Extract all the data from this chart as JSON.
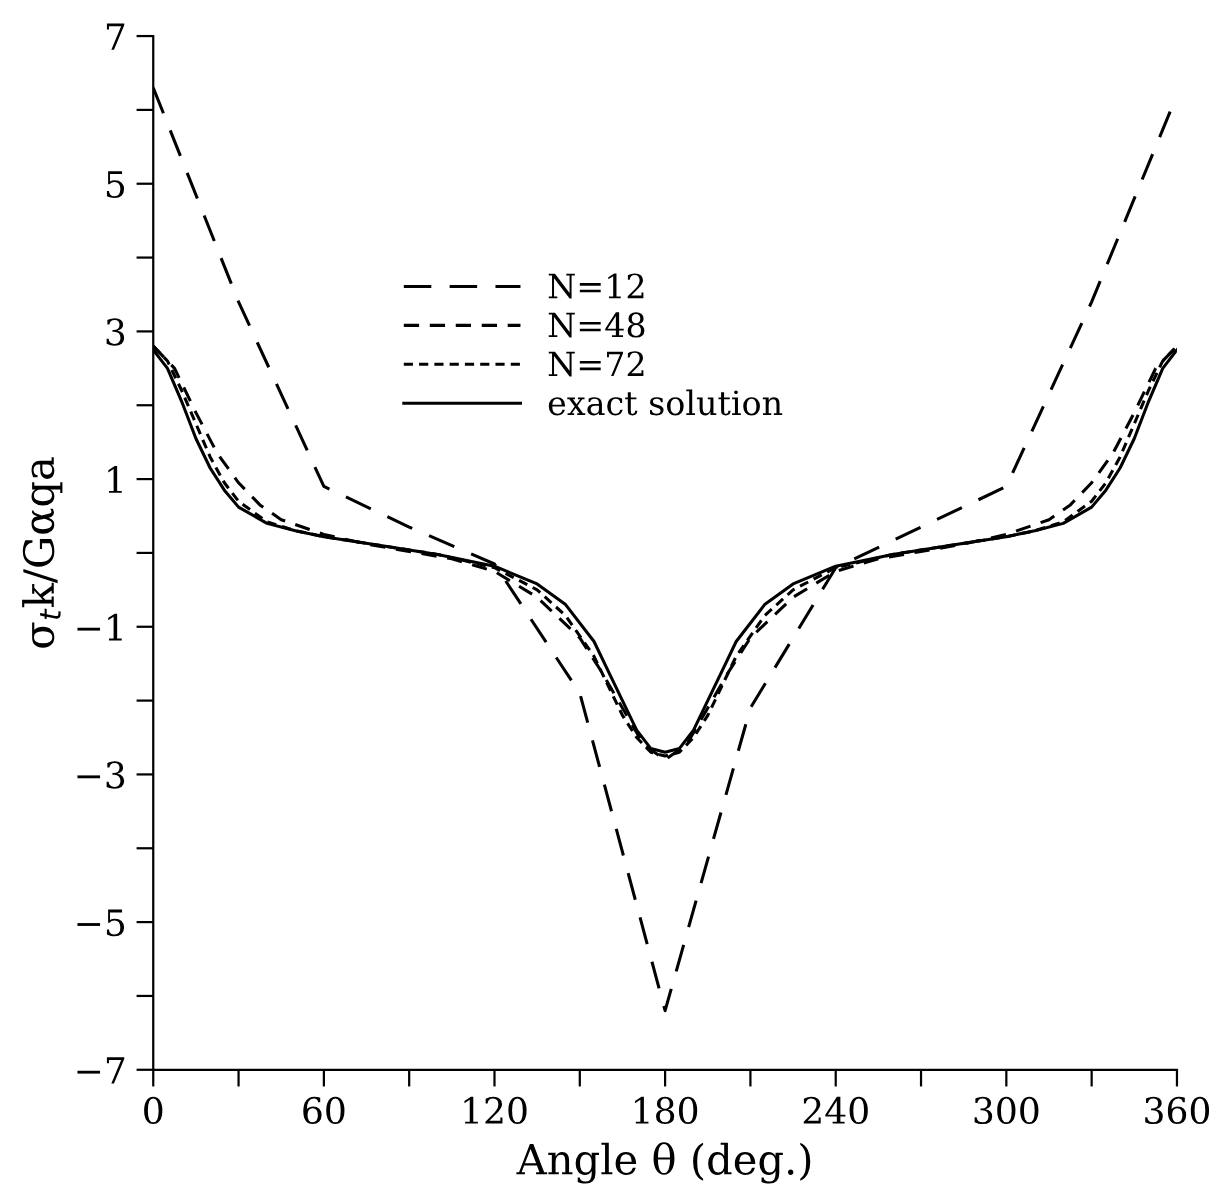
{
  "chart_data": {
    "type": "line",
    "xlabel": "Angle θ (deg.)",
    "ylabel": "σ$_{t}$k/Gαqa",
    "xlim": [
      0,
      360
    ],
    "ylim": [
      -7,
      7
    ],
    "xticks": [
      0,
      {
        "value": 30,
        "label": null
      },
      60,
      {
        "value": 90,
        "label": null
      },
      120,
      {
        "value": 150,
        "label": null
      },
      180,
      {
        "value": 210,
        "label": null
      },
      240,
      {
        "value": 270,
        "label": null
      },
      300,
      {
        "value": 330,
        "label": null
      },
      360
    ],
    "yticks": [
      -7,
      {
        "value": -6,
        "label": null
      },
      -5,
      {
        "value": -4,
        "label": null
      },
      -3,
      {
        "value": -2,
        "label": null
      },
      -1,
      {
        "value": 0,
        "label": null
      },
      1,
      {
        "value": 2,
        "label": null
      },
      3,
      {
        "value": 4,
        "label": null
      },
      5,
      {
        "value": 6,
        "label": null
      },
      7
    ],
    "legend": "top",
    "grid": false,
    "series": [
      {
        "name": "N=12",
        "color": "#000000",
        "line_style": "dashed",
        "x": [
          0,
          30,
          60,
          90,
          120,
          150,
          180,
          210,
          240,
          270,
          300,
          330,
          360
        ],
        "values": [
          6.3,
          3.4,
          0.9,
          0.35,
          -0.15,
          -1.9,
          -6.2,
          -2.1,
          -0.2,
          0.35,
          0.9,
          3.4,
          6.2
        ]
      },
      {
        "name": "N=48",
        "color": "#000000",
        "line_style": "dashed",
        "x": [
          0,
          7.5,
          15,
          22.5,
          30,
          37.5,
          45,
          60,
          75,
          90,
          105,
          120,
          135,
          150,
          157.5,
          165,
          172.5,
          180,
          187.5,
          195,
          202.5,
          210,
          225,
          240,
          255,
          270,
          285,
          300,
          315,
          322.5,
          330,
          337.5,
          345,
          352.5,
          360
        ],
        "values": [
          2.8,
          2.5,
          1.9,
          1.35,
          0.95,
          0.65,
          0.45,
          0.25,
          0.12,
          0.02,
          -0.08,
          -0.25,
          -0.6,
          -1.15,
          -1.6,
          -2.1,
          -2.6,
          -2.8,
          -2.6,
          -2.1,
          -1.6,
          -1.15,
          -0.6,
          -0.25,
          -0.08,
          0.02,
          0.12,
          0.25,
          0.45,
          0.65,
          0.95,
          1.35,
          1.9,
          2.5,
          2.8
        ]
      },
      {
        "name": "N=72",
        "color": "#000000",
        "line_style": "dotted",
        "x": [
          0,
          5,
          10,
          15,
          20,
          25,
          30,
          40,
          50,
          60,
          80,
          100,
          120,
          135,
          145,
          155,
          160,
          165,
          170,
          175,
          180,
          185,
          190,
          195,
          200,
          205,
          215,
          225,
          240,
          260,
          280,
          300,
          310,
          320,
          330,
          335,
          340,
          345,
          350,
          355,
          360
        ],
        "values": [
          2.8,
          2.6,
          2.2,
          1.75,
          1.3,
          0.95,
          0.7,
          0.42,
          0.3,
          0.22,
          0.1,
          -0.02,
          -0.2,
          -0.5,
          -0.85,
          -1.4,
          -1.8,
          -2.2,
          -2.5,
          -2.7,
          -2.75,
          -2.7,
          -2.5,
          -2.2,
          -1.8,
          -1.4,
          -0.85,
          -0.5,
          -0.2,
          -0.02,
          0.1,
          0.22,
          0.3,
          0.42,
          0.7,
          0.95,
          1.3,
          1.75,
          2.2,
          2.6,
          2.8
        ]
      },
      {
        "name": "exact solution",
        "color": "#000000",
        "line_style": "solid",
        "x": [
          0,
          5,
          10,
          15,
          20,
          25,
          30,
          40,
          50,
          60,
          80,
          100,
          120,
          135,
          145,
          155,
          160,
          165,
          170,
          175,
          180,
          185,
          190,
          195,
          200,
          205,
          215,
          225,
          240,
          260,
          280,
          300,
          310,
          320,
          330,
          335,
          340,
          345,
          350,
          355,
          360
        ],
        "values": [
          2.75,
          2.5,
          2.05,
          1.55,
          1.15,
          0.85,
          0.62,
          0.4,
          0.3,
          0.22,
          0.1,
          -0.02,
          -0.18,
          -0.42,
          -0.7,
          -1.2,
          -1.6,
          -2.0,
          -2.4,
          -2.65,
          -2.7,
          -2.65,
          -2.4,
          -2.0,
          -1.6,
          -1.2,
          -0.7,
          -0.42,
          -0.18,
          -0.02,
          0.1,
          0.22,
          0.3,
          0.4,
          0.62,
          0.85,
          1.15,
          1.55,
          2.05,
          2.5,
          2.75
        ]
      }
    ]
  }
}
